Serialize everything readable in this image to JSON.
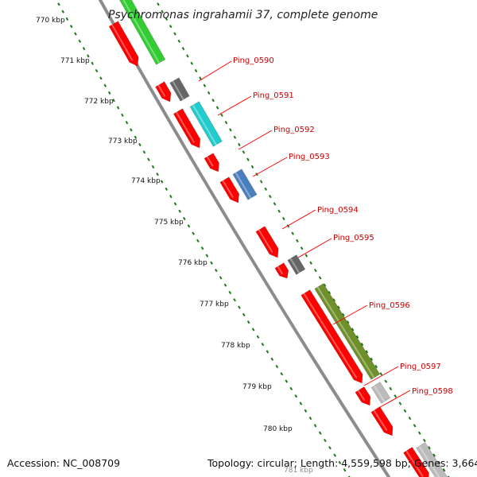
{
  "title": "Psychromonas ingrahamii 37, complete genome",
  "footer": {
    "accession": "Accession: NC_008709",
    "info": "Topology: circular; Length: 4,559,598 bp; Genes: 3,664"
  },
  "kbp_labels": [
    "770 kbp",
    "771 kbp",
    "772 kbp",
    "773 kbp",
    "774 kbp",
    "775 kbp",
    "776 kbp",
    "777 kbp",
    "778 kbp",
    "779 kbp",
    "780 kbp",
    "781 kbp"
  ],
  "gene_labels": [
    "Ping_0590",
    "Ping_0591",
    "Ping_0592",
    "Ping_0593",
    "Ping_0594",
    "Ping_0595",
    "Ping_0596",
    "Ping_0597",
    "Ping_0598"
  ],
  "colors": {
    "cds": "#ff0000",
    "backbone": "#8c8c8c",
    "ticks": "#1a7a1a",
    "label": "#cc0000",
    "green": "#33cc33",
    "dark_gray": "#666666",
    "cyan": "#22cccc",
    "steel_blue": "#4a7fbf",
    "olive": "#6f8f2a",
    "light_gray": "#bbbbbb"
  }
}
